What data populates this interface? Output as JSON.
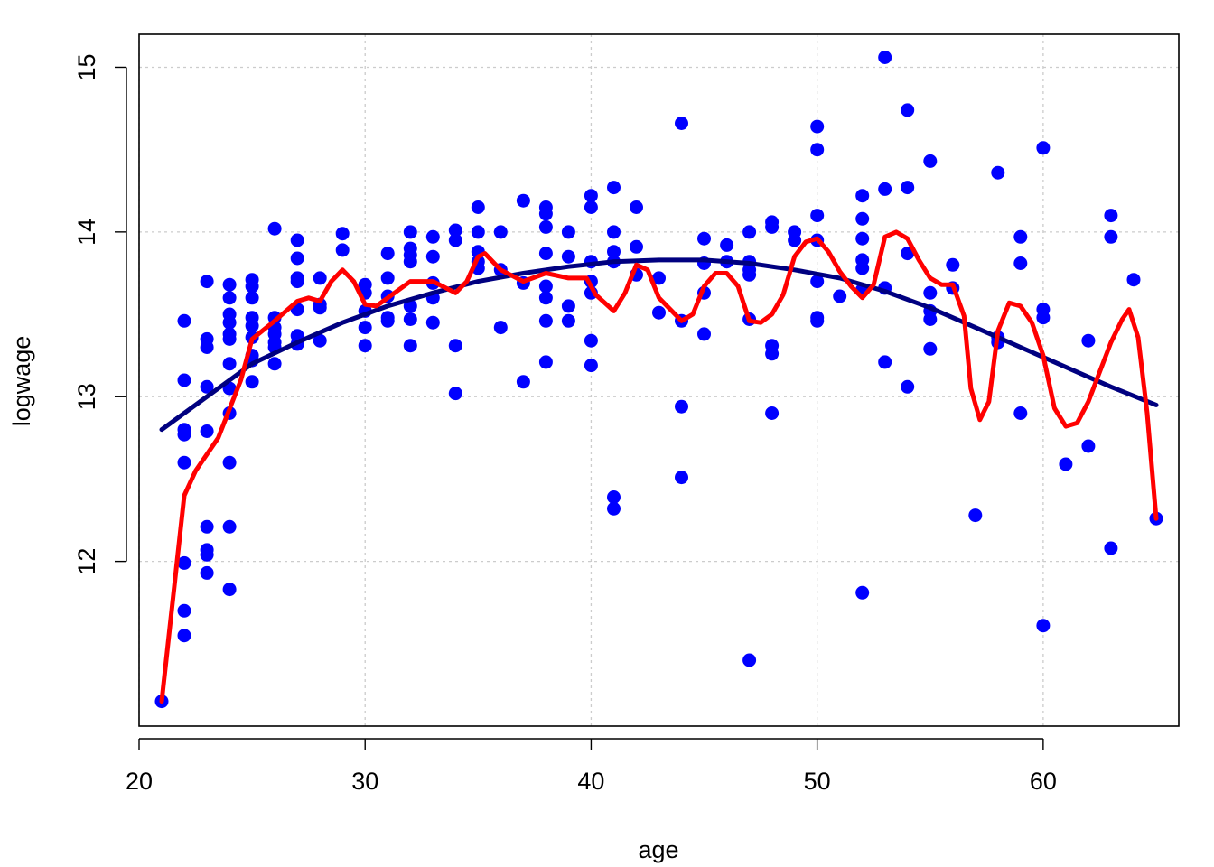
{
  "chart_data": {
    "type": "scatter",
    "xlabel": "age",
    "ylabel": "logwage",
    "xlim": [
      20,
      66
    ],
    "ylim": [
      11,
      15.2
    ],
    "xticks": [
      20,
      30,
      40,
      50,
      60
    ],
    "yticks": [
      12,
      13,
      14,
      15
    ],
    "grid": true,
    "colors": {
      "points": "#0000ff",
      "quadratic_fit": "#000080",
      "smooth_fit": "#ff0000",
      "grid": "#cccccc"
    },
    "points": [
      [
        21,
        11.15
      ],
      [
        22,
        13.46
      ],
      [
        22,
        13.1
      ],
      [
        22,
        12.8
      ],
      [
        22,
        12.77
      ],
      [
        22,
        12.6
      ],
      [
        22,
        11.99
      ],
      [
        22,
        11.7
      ],
      [
        22,
        11.55
      ],
      [
        23,
        13.7
      ],
      [
        23,
        13.35
      ],
      [
        23,
        13.3
      ],
      [
        23,
        13.06
      ],
      [
        23,
        12.79
      ],
      [
        23,
        12.21
      ],
      [
        23,
        12.07
      ],
      [
        23,
        12.04
      ],
      [
        23,
        11.93
      ],
      [
        24,
        13.68
      ],
      [
        24,
        13.6
      ],
      [
        24,
        13.5
      ],
      [
        24,
        13.45
      ],
      [
        24,
        13.38
      ],
      [
        24,
        13.35
      ],
      [
        24,
        13.2
      ],
      [
        24,
        13.05
      ],
      [
        24,
        12.9
      ],
      [
        24,
        12.6
      ],
      [
        24,
        12.21
      ],
      [
        24,
        11.83
      ],
      [
        25,
        13.71
      ],
      [
        25,
        13.67
      ],
      [
        25,
        13.6
      ],
      [
        25,
        13.48
      ],
      [
        25,
        13.43
      ],
      [
        25,
        13.36
      ],
      [
        25,
        13.25
      ],
      [
        25,
        13.22
      ],
      [
        25,
        13.09
      ],
      [
        26,
        14.02
      ],
      [
        26,
        13.48
      ],
      [
        26,
        13.42
      ],
      [
        26,
        13.38
      ],
      [
        26,
        13.33
      ],
      [
        26,
        13.3
      ],
      [
        26,
        13.2
      ],
      [
        27,
        13.95
      ],
      [
        27,
        13.84
      ],
      [
        27,
        13.72
      ],
      [
        27,
        13.7
      ],
      [
        27,
        13.53
      ],
      [
        27,
        13.37
      ],
      [
        27,
        13.32
      ],
      [
        28,
        13.72
      ],
      [
        28,
        13.56
      ],
      [
        28,
        13.54
      ],
      [
        28,
        13.34
      ],
      [
        29,
        13.99
      ],
      [
        29,
        13.89
      ],
      [
        30,
        13.68
      ],
      [
        30,
        13.63
      ],
      [
        30,
        13.52
      ],
      [
        30,
        13.42
      ],
      [
        30,
        13.31
      ],
      [
        31,
        13.87
      ],
      [
        31,
        13.72
      ],
      [
        31,
        13.61
      ],
      [
        31,
        13.48
      ],
      [
        31,
        13.46
      ],
      [
        32,
        14.0
      ],
      [
        32,
        13.9
      ],
      [
        32,
        13.86
      ],
      [
        32,
        13.82
      ],
      [
        32,
        13.55
      ],
      [
        32,
        13.47
      ],
      [
        32,
        13.31
      ],
      [
        33,
        13.97
      ],
      [
        33,
        13.85
      ],
      [
        33,
        13.69
      ],
      [
        33,
        13.6
      ],
      [
        33,
        13.45
      ],
      [
        34,
        14.01
      ],
      [
        34,
        13.95
      ],
      [
        34,
        13.31
      ],
      [
        34,
        13.02
      ],
      [
        35,
        14.15
      ],
      [
        35,
        14.0
      ],
      [
        35,
        13.88
      ],
      [
        35,
        13.82
      ],
      [
        35,
        13.78
      ],
      [
        36,
        14.0
      ],
      [
        36,
        13.77
      ],
      [
        36,
        13.42
      ],
      [
        37,
        14.19
      ],
      [
        37,
        13.69
      ],
      [
        37,
        13.09
      ],
      [
        38,
        14.15
      ],
      [
        38,
        14.11
      ],
      [
        38,
        14.03
      ],
      [
        38,
        13.87
      ],
      [
        38,
        13.67
      ],
      [
        38,
        13.6
      ],
      [
        38,
        13.46
      ],
      [
        38,
        13.21
      ],
      [
        39,
        14.0
      ],
      [
        39,
        13.85
      ],
      [
        39,
        13.55
      ],
      [
        39,
        13.46
      ],
      [
        40,
        14.22
      ],
      [
        40,
        14.15
      ],
      [
        40,
        13.82
      ],
      [
        40,
        13.7
      ],
      [
        40,
        13.63
      ],
      [
        40,
        13.34
      ],
      [
        40,
        13.19
      ],
      [
        41,
        14.27
      ],
      [
        41,
        14.0
      ],
      [
        41,
        13.88
      ],
      [
        41,
        13.82
      ],
      [
        41,
        12.39
      ],
      [
        41,
        12.32
      ],
      [
        42,
        14.15
      ],
      [
        42,
        13.91
      ],
      [
        42,
        13.74
      ],
      [
        43,
        13.72
      ],
      [
        43,
        13.51
      ],
      [
        44,
        14.66
      ],
      [
        44,
        13.46
      ],
      [
        44,
        12.94
      ],
      [
        44,
        12.51
      ],
      [
        45,
        13.96
      ],
      [
        45,
        13.81
      ],
      [
        45,
        13.63
      ],
      [
        45,
        13.38
      ],
      [
        46,
        13.92
      ],
      [
        46,
        13.82
      ],
      [
        47,
        14.0
      ],
      [
        47,
        13.82
      ],
      [
        47,
        13.77
      ],
      [
        47,
        13.74
      ],
      [
        47,
        13.47
      ],
      [
        47,
        11.4
      ],
      [
        48,
        14.06
      ],
      [
        48,
        14.03
      ],
      [
        48,
        13.31
      ],
      [
        48,
        13.26
      ],
      [
        48,
        12.9
      ],
      [
        49,
        14.0
      ],
      [
        49,
        13.95
      ],
      [
        50,
        14.64
      ],
      [
        50,
        14.5
      ],
      [
        50,
        14.1
      ],
      [
        50,
        13.95
      ],
      [
        50,
        13.7
      ],
      [
        50,
        13.48
      ],
      [
        50,
        13.46
      ],
      [
        51,
        13.61
      ],
      [
        52,
        14.22
      ],
      [
        52,
        14.08
      ],
      [
        52,
        13.96
      ],
      [
        52,
        13.83
      ],
      [
        52,
        13.78
      ],
      [
        52,
        13.65
      ],
      [
        52,
        11.81
      ],
      [
        53,
        15.06
      ],
      [
        53,
        14.26
      ],
      [
        53,
        13.66
      ],
      [
        53,
        13.21
      ],
      [
        54,
        14.74
      ],
      [
        54,
        14.27
      ],
      [
        54,
        13.87
      ],
      [
        54,
        13.06
      ],
      [
        55,
        14.43
      ],
      [
        55,
        13.63
      ],
      [
        55,
        13.52
      ],
      [
        55,
        13.47
      ],
      [
        55,
        13.29
      ],
      [
        56,
        13.8
      ],
      [
        56,
        13.66
      ],
      [
        57,
        12.28
      ],
      [
        58,
        14.36
      ],
      [
        58,
        13.36
      ],
      [
        58,
        13.33
      ],
      [
        59,
        13.97
      ],
      [
        59,
        13.81
      ],
      [
        59,
        12.9
      ],
      [
        60,
        14.51
      ],
      [
        60,
        13.53
      ],
      [
        60,
        13.48
      ],
      [
        60,
        11.61
      ],
      [
        61,
        12.59
      ],
      [
        62,
        13.34
      ],
      [
        62,
        12.7
      ],
      [
        63,
        14.1
      ],
      [
        63,
        13.97
      ],
      [
        63,
        12.08
      ],
      [
        64,
        13.71
      ],
      [
        65,
        12.26
      ]
    ],
    "series": [
      {
        "type": "line",
        "color": "#000080",
        "points": [
          [
            21,
            12.8
          ],
          [
            23,
            13.0
          ],
          [
            25,
            13.2
          ],
          [
            27,
            13.33
          ],
          [
            29,
            13.45
          ],
          [
            31,
            13.55
          ],
          [
            33,
            13.63
          ],
          [
            35,
            13.7
          ],
          [
            37,
            13.75
          ],
          [
            39,
            13.79
          ],
          [
            41,
            13.82
          ],
          [
            43,
            13.83
          ],
          [
            45,
            13.83
          ],
          [
            47,
            13.81
          ],
          [
            49,
            13.77
          ],
          [
            51,
            13.72
          ],
          [
            53,
            13.64
          ],
          [
            55,
            13.54
          ],
          [
            57,
            13.42
          ],
          [
            59,
            13.3
          ],
          [
            61,
            13.18
          ],
          [
            63,
            13.06
          ],
          [
            65,
            12.95
          ]
        ]
      },
      {
        "type": "line",
        "color": "#ff0000",
        "points": [
          [
            21,
            11.15
          ],
          [
            22,
            12.4
          ],
          [
            22.5,
            12.55
          ],
          [
            23.5,
            12.75
          ],
          [
            24.5,
            13.1
          ],
          [
            25,
            13.35
          ],
          [
            26,
            13.46
          ],
          [
            27,
            13.58
          ],
          [
            27.5,
            13.6
          ],
          [
            28,
            13.58
          ],
          [
            28.5,
            13.7
          ],
          [
            29,
            13.77
          ],
          [
            29.5,
            13.7
          ],
          [
            30,
            13.56
          ],
          [
            30.5,
            13.55
          ],
          [
            31,
            13.6
          ],
          [
            32,
            13.7
          ],
          [
            33,
            13.7
          ],
          [
            34,
            13.63
          ],
          [
            34.5,
            13.7
          ],
          [
            35,
            13.85
          ],
          [
            35.3,
            13.87
          ],
          [
            36,
            13.77
          ],
          [
            37,
            13.7
          ],
          [
            38,
            13.75
          ],
          [
            39,
            13.72
          ],
          [
            39.8,
            13.72
          ],
          [
            40.2,
            13.62
          ],
          [
            41,
            13.52
          ],
          [
            41.5,
            13.63
          ],
          [
            42,
            13.8
          ],
          [
            42.5,
            13.77
          ],
          [
            43,
            13.6
          ],
          [
            44,
            13.46
          ],
          [
            44.5,
            13.5
          ],
          [
            45,
            13.67
          ],
          [
            45.5,
            13.75
          ],
          [
            46,
            13.75
          ],
          [
            46.5,
            13.67
          ],
          [
            47,
            13.46
          ],
          [
            47.5,
            13.45
          ],
          [
            48,
            13.5
          ],
          [
            48.5,
            13.62
          ],
          [
            49,
            13.85
          ],
          [
            49.5,
            13.94
          ],
          [
            50,
            13.96
          ],
          [
            50.5,
            13.88
          ],
          [
            51,
            13.76
          ],
          [
            51.5,
            13.67
          ],
          [
            52,
            13.6
          ],
          [
            52.5,
            13.68
          ],
          [
            53,
            13.97
          ],
          [
            53.5,
            14.0
          ],
          [
            54,
            13.96
          ],
          [
            54.5,
            13.83
          ],
          [
            55,
            13.72
          ],
          [
            55.5,
            13.68
          ],
          [
            56,
            13.68
          ],
          [
            56.5,
            13.49
          ],
          [
            56.8,
            13.05
          ],
          [
            57.2,
            12.86
          ],
          [
            57.6,
            12.97
          ],
          [
            58,
            13.4
          ],
          [
            58.5,
            13.57
          ],
          [
            59,
            13.55
          ],
          [
            59.5,
            13.45
          ],
          [
            60,
            13.25
          ],
          [
            60.5,
            12.93
          ],
          [
            61,
            12.82
          ],
          [
            61.5,
            12.84
          ],
          [
            62,
            12.97
          ],
          [
            62.5,
            13.15
          ],
          [
            63,
            13.33
          ],
          [
            63.5,
            13.47
          ],
          [
            63.8,
            13.53
          ],
          [
            64.2,
            13.36
          ],
          [
            64.6,
            12.9
          ],
          [
            65,
            12.26
          ]
        ]
      }
    ]
  }
}
